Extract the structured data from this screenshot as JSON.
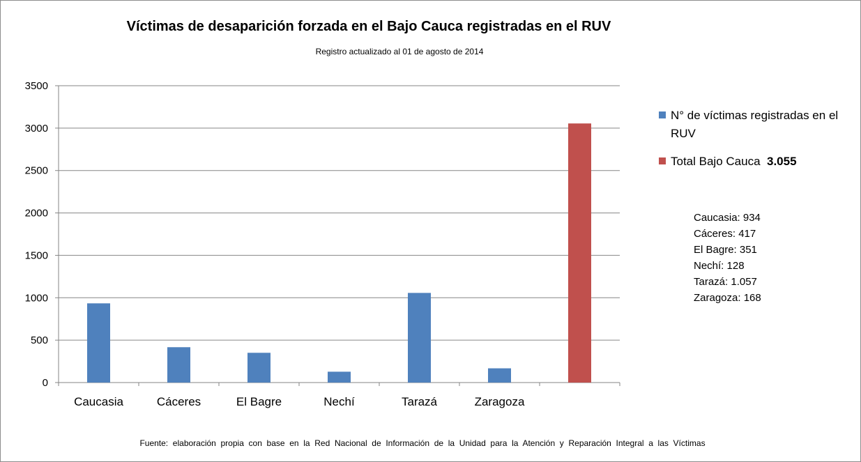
{
  "chart_data": {
    "type": "bar",
    "title": "Víctimas de desaparición forzada en el Bajo Cauca registradas en el RUV",
    "subtitle": "Registro actualizado  al 01 de agosto de 2014",
    "categories": [
      "Caucasia",
      "Cáceres",
      "El Bagre",
      "Nechí",
      "Tarazá",
      "Zaragoza",
      ""
    ],
    "series": [
      {
        "name": "N° de víctimas registradas en el RUV",
        "color": "#4f81bd",
        "values": [
          934,
          417,
          351,
          128,
          1057,
          168,
          null
        ]
      },
      {
        "name": "Total Bajo Cauca",
        "color": "#c0504d",
        "values": [
          null,
          null,
          null,
          null,
          null,
          null,
          3055
        ]
      }
    ],
    "ylim": [
      0,
      3500
    ],
    "yticks": [
      0,
      500,
      1000,
      1500,
      2000,
      2500,
      3000,
      3500
    ],
    "grid": true,
    "legend_position": "right",
    "legend": [
      {
        "label": "N° de víctimas registradas en el RUV",
        "value": "",
        "color": "#4f81bd"
      },
      {
        "label": "Total Bajo Cauca ",
        "value": "3.055",
        "color": "#c0504d"
      }
    ],
    "annotations": [
      "Caucasia: 934",
      "Cáceres: 417",
      "El Bagre: 351",
      "Nechí: 128",
      "Tarazá: 1.057",
      "Zaragoza: 168"
    ],
    "source": "Fuente:  elaboración  propia  con  base  en  la  Red  Nacional  de  Información  de  la  Unidad  para  la  Atención  y  Reparación  Integral  a  las  Víctimas"
  }
}
